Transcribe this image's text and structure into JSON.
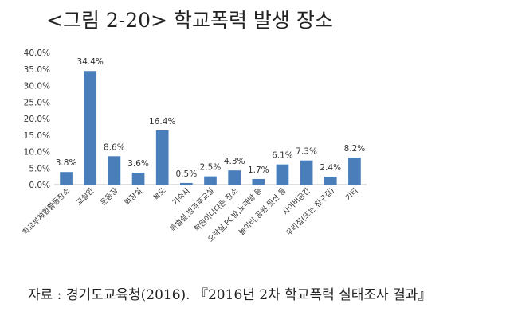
{
  "figure": {
    "title": "<그림 2-20> 학교폭력 발생 장소",
    "source": "자료 : 경기도교육청(2016). 『2016년 2차 학교폭력 실태조사 결과』"
  },
  "chart_data": {
    "type": "bar",
    "title": "",
    "xlabel": "",
    "ylabel": "",
    "ylim": [
      0,
      40
    ],
    "yticks": [
      "0.0%",
      "5.0%",
      "10.0%",
      "15.0%",
      "20.0%",
      "25.0%",
      "30.0%",
      "35.0%",
      "40.0%"
    ],
    "grid": false,
    "bar_color": "#4a7ebb",
    "categories": [
      "학교부체험활동장소",
      "교실안",
      "운동장",
      "화장실",
      "복도",
      "기숙사",
      "특별실,방과후교실",
      "학원이나다른 장소",
      "오락실,PC방,노래방 등",
      "놀이터,공원,뒷산 등",
      "사이버공간",
      "우리집(또는 친구집)",
      "기타"
    ],
    "values": [
      3.8,
      34.4,
      8.6,
      3.6,
      16.4,
      0.5,
      2.5,
      4.3,
      1.7,
      6.1,
      7.3,
      2.4,
      8.2
    ],
    "data_labels": [
      "3.8%",
      "34.4%",
      "8.6%",
      "3.6%",
      "16.4%",
      "0.5%",
      "2.5%",
      "4.3%",
      "1.7%",
      "6.1%",
      "7.3%",
      "2.4%",
      "8.2%"
    ]
  }
}
